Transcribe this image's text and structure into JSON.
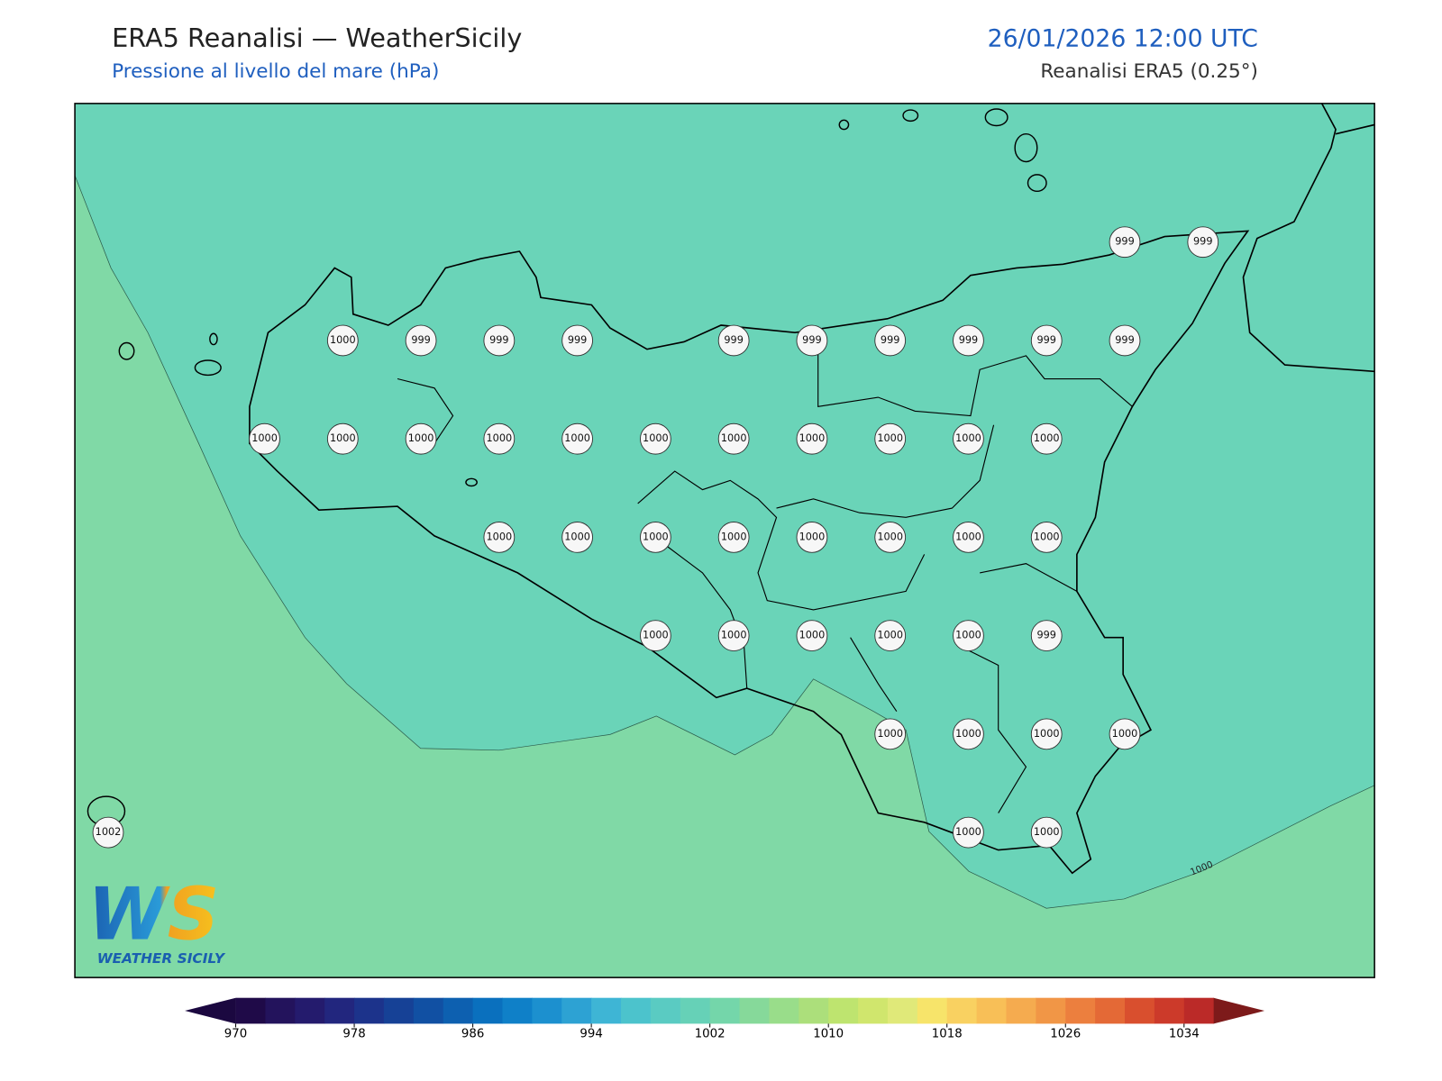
{
  "header": {
    "title": "ERA5 Reanalisi — WeatherSicily",
    "subtitle": "Pressione al livello del mare (hPa)",
    "datetime": "26/01/2026 12:00 UTC",
    "source": "Reanalisi ERA5 (0.25°)"
  },
  "map": {
    "grid": [
      [
        null,
        null,
        null,
        null,
        null,
        null,
        null,
        null,
        null,
        null,
        null,
        null,
        null,
        999,
        999
      ],
      [
        null,
        null,
        null,
        1000,
        999,
        999,
        999,
        null,
        999,
        999,
        999,
        999,
        999,
        999,
        null
      ],
      [
        null,
        null,
        1000,
        1000,
        1000,
        1000,
        1000,
        1000,
        1000,
        1000,
        1000,
        1000,
        1000,
        null,
        null
      ],
      [
        null,
        null,
        null,
        null,
        null,
        1000,
        1000,
        1000,
        1000,
        1000,
        1000,
        1000,
        1000,
        null,
        null
      ],
      [
        null,
        null,
        null,
        null,
        null,
        null,
        null,
        1000,
        1000,
        1000,
        1000,
        1000,
        999,
        null,
        null
      ],
      [
        null,
        null,
        null,
        null,
        null,
        null,
        null,
        null,
        null,
        null,
        1000,
        1000,
        1000,
        1000,
        null
      ],
      [
        1002,
        null,
        null,
        null,
        null,
        null,
        null,
        null,
        null,
        null,
        null,
        1000,
        1000,
        null,
        null
      ]
    ],
    "contour_label": "1000",
    "sea_color": "#6ad4b8",
    "low_color": "#80d9a6"
  },
  "logo": {
    "mark": "WS",
    "text": "WEATHER SICILY"
  },
  "colorbar": {
    "range": [
      970,
      1036
    ],
    "ticks": [
      970,
      978,
      986,
      994,
      1002,
      1010,
      1018,
      1026,
      1034
    ],
    "colors": [
      "#1f0a48",
      "#23135c",
      "#241b6d",
      "#22267e",
      "#1c338b",
      "#164196",
      "#1150a3",
      "#0d60b0",
      "#0a70be",
      "#0f80c8",
      "#1c90cf",
      "#2da2d3",
      "#3eb5d5",
      "#4cc3cc",
      "#5acbc2",
      "#66d1b7",
      "#74d6aa",
      "#86d99a",
      "#99dd8a",
      "#acdf7b",
      "#bee46f",
      "#d0e66d",
      "#e0e979",
      "#f7e46a",
      "#f9d161",
      "#f8bf57",
      "#f5ab4f",
      "#f19646",
      "#ec7f3e",
      "#e46936",
      "#d94f2e",
      "#cc3a2a",
      "#bb2a28"
    ],
    "under_color": "#1b0840",
    "over_color": "#7d1a1a"
  }
}
